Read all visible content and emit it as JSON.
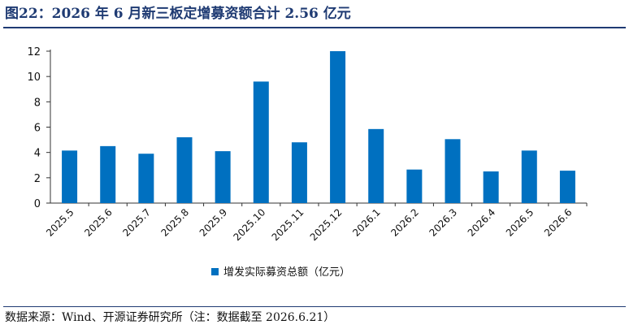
{
  "title": "图22：2026 年 6 月新三板定增募资额合计 2.56 亿元",
  "source": "数据来源：Wind、开源证券研究所（注：数据截至 2026.6.21）",
  "colors": {
    "bar": "#0070c0",
    "title": "#1f3b73"
  },
  "chart_data": {
    "type": "bar",
    "categories": [
      "2025.5",
      "2025.6",
      "2025.7",
      "2025.8",
      "2025.9",
      "2025.10",
      "2025.11",
      "2025.12",
      "2026.1",
      "2026.2",
      "2026.3",
      "2026.4",
      "2026.5",
      "2026.6"
    ],
    "series": [
      {
        "name": "增发实际募资总额（亿元）",
        "values": [
          4.15,
          4.5,
          3.9,
          5.2,
          4.1,
          9.6,
          4.8,
          12.0,
          5.85,
          2.65,
          5.05,
          2.5,
          4.15,
          2.56
        ]
      }
    ],
    "ylim": [
      0,
      12
    ],
    "yticks": [
      0,
      2,
      4,
      6,
      8,
      10,
      12
    ],
    "grid": false,
    "legend_position": "bottom-center"
  }
}
